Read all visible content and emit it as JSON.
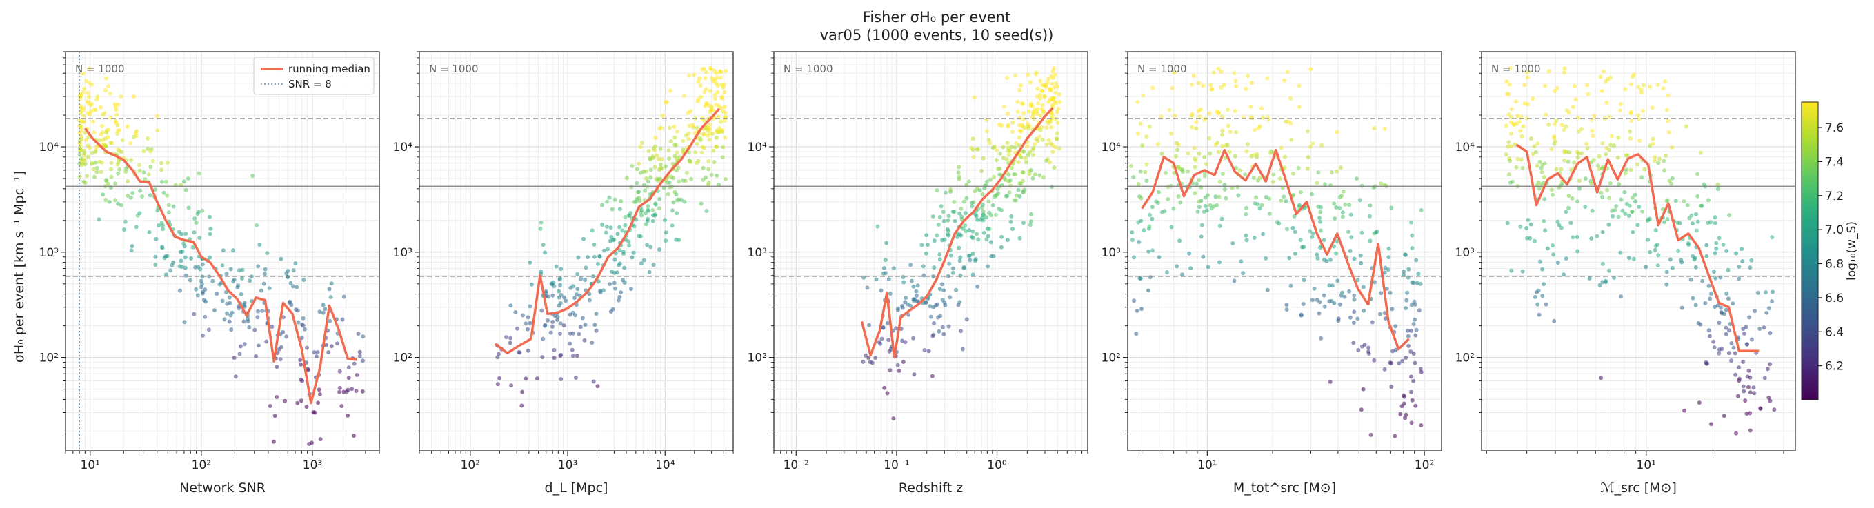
{
  "figure": {
    "title_line1": "Fisher σH₀ per event",
    "title_line2": "var05  (1000 events, 10 seed(s))",
    "ylabel": "σH₀ per event [km s⁻¹ Mpc⁻¹]"
  },
  "colors": {
    "median": "#f26a4f",
    "snr_line": "#5a8fb8",
    "hline_solid": "#888888",
    "hline_dashed": "#888888"
  },
  "colorbar": {
    "label": "log₁₀(w_S)",
    "range": [
      6.0,
      7.75
    ],
    "ticks": [
      "6.2",
      "6.4",
      "6.6",
      "6.8",
      "7.0",
      "7.2",
      "7.4",
      "7.6"
    ]
  },
  "legend": {
    "median_label": "running median",
    "snr_label": "SNR = 8"
  },
  "chart_data": [
    {
      "type": "scatter",
      "panel": "snr",
      "xlabel": "Network SNR",
      "n_label": "N = 1000",
      "xscale": "log",
      "xlim": [
        6,
        4000
      ],
      "ylim": [
        13,
        80000
      ],
      "xticks": [
        {
          "v": 10,
          "t": "10¹"
        },
        {
          "v": 100,
          "t": "10²"
        },
        {
          "v": 1000,
          "t": "10³"
        }
      ],
      "yticks": [
        {
          "v": 100,
          "t": "10²"
        },
        {
          "v": 1000,
          "t": "10³"
        },
        {
          "v": 10000,
          "t": "10⁴"
        }
      ],
      "hlines": {
        "solid": 4200,
        "dashed": [
          18500,
          590
        ]
      },
      "vline": 8,
      "median": {
        "x": [
          9,
          10.5,
          12,
          14,
          17,
          20,
          24,
          28,
          34,
          40,
          48,
          58,
          70,
          85,
          100,
          120,
          145,
          175,
          210,
          255,
          310,
          375,
          450,
          545,
          660,
          800,
          970,
          1170,
          1420,
          1720,
          2080,
          2520
        ],
        "y": [
          15000,
          12000,
          10500,
          9000,
          8200,
          7500,
          6000,
          4700,
          4600,
          3000,
          2000,
          1400,
          1300,
          1250,
          900,
          800,
          600,
          430,
          360,
          250,
          370,
          350,
          92,
          330,
          260,
          120,
          37,
          80,
          310,
          185,
          97,
          95
        ]
      }
    },
    {
      "type": "scatter",
      "panel": "dl",
      "xlabel": "d_L [Mpc]",
      "n_label": "N = 1000",
      "xscale": "log",
      "xlim": [
        30,
        50000
      ],
      "ylim": [
        13,
        80000
      ],
      "xticks": [
        {
          "v": 100,
          "t": "10²"
        },
        {
          "v": 1000,
          "t": "10³"
        },
        {
          "v": 10000,
          "t": "10⁴"
        }
      ],
      "yticks": [
        {
          "v": 100,
          "t": "10²"
        },
        {
          "v": 1000,
          "t": "10³"
        },
        {
          "v": 10000,
          "t": "10⁴"
        }
      ],
      "hlines": {
        "solid": 4200,
        "dashed": [
          18500,
          590
        ]
      },
      "median": {
        "x": [
          180,
          240,
          320,
          420,
          520,
          620,
          780,
          980,
          1250,
          1600,
          2000,
          2600,
          3300,
          4200,
          5400,
          7000,
          9000,
          11500,
          14500,
          18500,
          23500,
          30000,
          36000
        ],
        "y": [
          135,
          110,
          130,
          150,
          600,
          260,
          265,
          290,
          340,
          420,
          560,
          900,
          1100,
          1600,
          2700,
          3200,
          4500,
          6000,
          7500,
          10500,
          15000,
          19000,
          23000
        ]
      }
    },
    {
      "type": "scatter",
      "panel": "z",
      "xlabel": "Redshift z",
      "n_label": "N = 1000",
      "xscale": "log",
      "xlim": [
        0.006,
        8
      ],
      "ylim": [
        13,
        80000
      ],
      "xticks": [
        {
          "v": 0.01,
          "t": "10⁻²"
        },
        {
          "v": 0.1,
          "t": "10⁻¹"
        },
        {
          "v": 1,
          "t": "10⁰"
        }
      ],
      "yticks": [
        {
          "v": 100,
          "t": "10²"
        },
        {
          "v": 1000,
          "t": "10³"
        },
        {
          "v": 10000,
          "t": "10⁴"
        }
      ],
      "hlines": {
        "solid": 4200,
        "dashed": [
          18500,
          590
        ]
      },
      "median": {
        "x": [
          0.045,
          0.055,
          0.068,
          0.08,
          0.095,
          0.11,
          0.135,
          0.165,
          0.2,
          0.25,
          0.31,
          0.38,
          0.47,
          0.58,
          0.72,
          0.9,
          1.1,
          1.35,
          1.65,
          2.0,
          2.5,
          3.0,
          3.6
        ],
        "y": [
          220,
          105,
          180,
          410,
          100,
          240,
          280,
          320,
          380,
          550,
          900,
          1500,
          2000,
          2400,
          3200,
          3900,
          5000,
          6800,
          9000,
          12000,
          15500,
          19500,
          23500
        ]
      }
    },
    {
      "type": "scatter",
      "panel": "mtot",
      "xlabel": "M_tot^src [M⊙]",
      "n_label": "N = 1000",
      "xscale": "log",
      "xlim": [
        4.3,
        120
      ],
      "ylim": [
        13,
        80000
      ],
      "xticks": [
        {
          "v": 10,
          "t": "10¹"
        },
        {
          "v": 100,
          "t": "10²"
        }
      ],
      "yticks": [
        {
          "v": 100,
          "t": "10²"
        },
        {
          "v": 1000,
          "t": "10³"
        },
        {
          "v": 10000,
          "t": "10⁴"
        }
      ],
      "hlines": {
        "solid": 4200,
        "dashed": [
          18500,
          590
        ]
      },
      "median": {
        "x": [
          5,
          5.6,
          6.3,
          7.0,
          7.8,
          8.7,
          9.7,
          10.8,
          12.0,
          13.4,
          15.0,
          16.7,
          18.6,
          20.7,
          23.1,
          25.7,
          28.7,
          32.0,
          35.6,
          39.7,
          44.3,
          49.4,
          55.0,
          61.3,
          68.3,
          76.1,
          84.8
        ],
        "y": [
          2600,
          3700,
          8000,
          7000,
          3400,
          5400,
          6000,
          5400,
          9300,
          5800,
          4800,
          6900,
          4700,
          9300,
          4700,
          2300,
          3000,
          1500,
          950,
          1500,
          800,
          450,
          320,
          1200,
          220,
          120,
          150
        ]
      }
    },
    {
      "type": "scatter",
      "panel": "mchirp",
      "xlabel": "ℳ_src [M⊙]",
      "n_label": "N = 1000",
      "xscale": "log",
      "xlim": [
        1.9,
        45
      ],
      "ylim": [
        13,
        80000
      ],
      "xticks": [
        {
          "v": 10,
          "t": "10¹"
        }
      ],
      "yticks": [
        {
          "v": 100,
          "t": "10²"
        },
        {
          "v": 1000,
          "t": "10³"
        },
        {
          "v": 10000,
          "t": "10⁴"
        }
      ],
      "hlines": {
        "solid": 4200,
        "dashed": [
          18500,
          590
        ]
      },
      "median": {
        "x": [
          2.7,
          3.0,
          3.3,
          3.7,
          4.1,
          4.5,
          5.0,
          5.5,
          6.1,
          6.8,
          7.5,
          8.3,
          9.2,
          10.2,
          11.3,
          12.5,
          13.8,
          15.3,
          17.0,
          18.8,
          20.8,
          23.0,
          25.5,
          28.2,
          31.2
        ],
        "y": [
          10500,
          9000,
          2800,
          4900,
          5600,
          4400,
          6900,
          8000,
          3700,
          7600,
          4900,
          7700,
          8500,
          6800,
          1800,
          2900,
          1300,
          1500,
          1100,
          600,
          330,
          300,
          115,
          115,
          115
        ]
      }
    }
  ]
}
